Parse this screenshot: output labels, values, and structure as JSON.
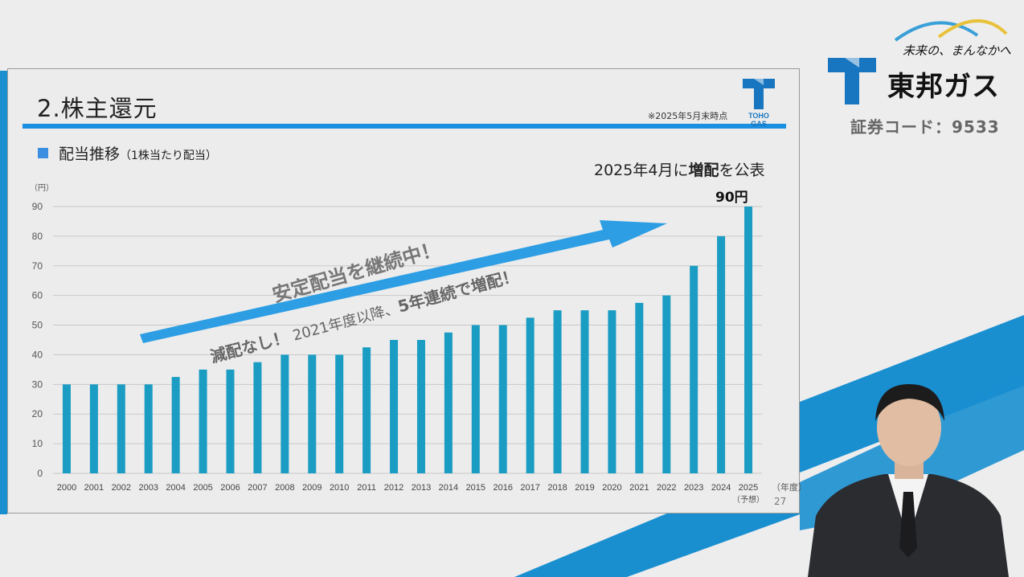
{
  "slide": {
    "title": "2.株主還元",
    "note": "※2025年5月末時点",
    "logo_text": "TOHO GAS",
    "section_heading": "配当推移",
    "section_subheading": "（1株当たり配当）",
    "announcement_prefix": "2025年4月に",
    "announcement_bold": "増配",
    "announcement_suffix": "を公表",
    "callout": "90円",
    "annotation_main": "安定配当を継続中！",
    "annotation_sub_bold1": "減配なし！",
    "annotation_sub_text": "2021年度以降、",
    "annotation_sub_bold2": "5年連続で増配！",
    "page_number": "27"
  },
  "brand": {
    "tagline": "未来の、まんなかへ",
    "name": "東邦ガス",
    "stock_code": "証券コード：9533"
  },
  "colors": {
    "bar": "#1a9cc3",
    "accent": "#1b8fe0",
    "arrow": "#2d9ee4",
    "stripe": "#1a8fd0"
  },
  "chart_data": {
    "type": "bar",
    "categories": [
      "2000",
      "2001",
      "2002",
      "2003",
      "2004",
      "2005",
      "2006",
      "2007",
      "2008",
      "2009",
      "2010",
      "2011",
      "2012",
      "2013",
      "2014",
      "2015",
      "2016",
      "2017",
      "2018",
      "2019",
      "2020",
      "2021",
      "2022",
      "2023",
      "2024",
      "2025"
    ],
    "values": [
      30,
      30,
      30,
      30,
      32.5,
      35,
      35,
      37.5,
      40,
      40,
      40,
      42.5,
      45,
      45,
      47.5,
      50,
      50,
      52.5,
      55,
      55,
      55,
      57.5,
      60,
      70,
      80,
      90
    ],
    "y_unit": "（円）",
    "x_unit": "（年度）",
    "last_category_note": "（予想）",
    "yticks": [
      0,
      10,
      20,
      30,
      40,
      50,
      60,
      70,
      80,
      90
    ],
    "ylim": [
      0,
      90
    ],
    "grid": true
  }
}
